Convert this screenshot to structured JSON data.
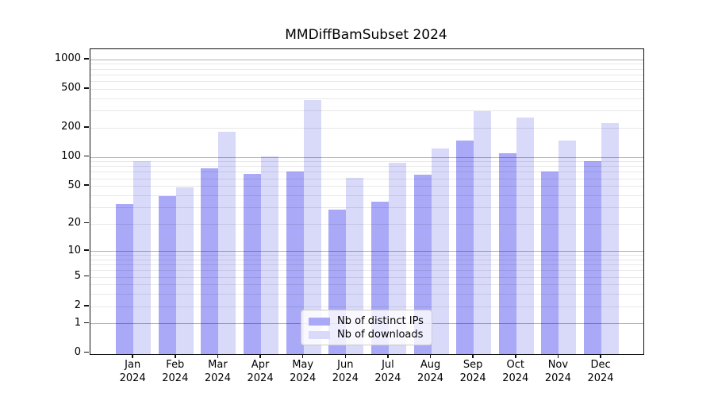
{
  "title": "MMDiffBamSubset 2024",
  "legend": {
    "items": [
      {
        "label": "Nb of distinct IPs",
        "color": "#a9a9f7"
      },
      {
        "label": "Nb of downloads",
        "color": "#d9d9fa"
      }
    ]
  },
  "y_axis": {
    "tick_values": [
      0,
      1,
      2,
      5,
      10,
      20,
      50,
      100,
      200,
      500,
      1000
    ],
    "tick_labels": [
      "0",
      "1",
      "2",
      "5",
      "10",
      "20",
      "50",
      "100",
      "200",
      "500",
      "1000"
    ]
  },
  "x_axis": {
    "months": [
      "Jan",
      "Feb",
      "Mar",
      "Apr",
      "May",
      "Jun",
      "Jul",
      "Aug",
      "Sep",
      "Oct",
      "Nov",
      "Dec"
    ],
    "year": "2024"
  },
  "chart_data": {
    "type": "bar",
    "title": "MMDiffBamSubset 2024",
    "categories": [
      "Jan 2024",
      "Feb 2024",
      "Mar 2024",
      "Apr 2024",
      "May 2024",
      "Jun 2024",
      "Jul 2024",
      "Aug 2024",
      "Sep 2024",
      "Oct 2024",
      "Nov 2024",
      "Dec 2024"
    ],
    "series": [
      {
        "name": "Nb of distinct IPs",
        "color": "#a9a9f7",
        "values": [
          32,
          39,
          76,
          67,
          70,
          28,
          34,
          65,
          148,
          110,
          70,
          90
        ]
      },
      {
        "name": "Nb of downloads",
        "color": "#d9d9fa",
        "values": [
          90,
          48,
          181,
          101,
          384,
          61,
          87,
          122,
          295,
          254,
          147,
          223
        ]
      }
    ],
    "yscale": "log1p",
    "ylim": [
      0,
      1250
    ],
    "yticks": [
      0,
      1,
      2,
      5,
      10,
      20,
      50,
      100,
      200,
      500,
      1000
    ],
    "major_grid_at": [
      1,
      10,
      100,
      1000
    ],
    "grid": "horizontal major+minor, drawn over bars",
    "legend_position": "lower center",
    "xlabel": "",
    "ylabel": ""
  }
}
